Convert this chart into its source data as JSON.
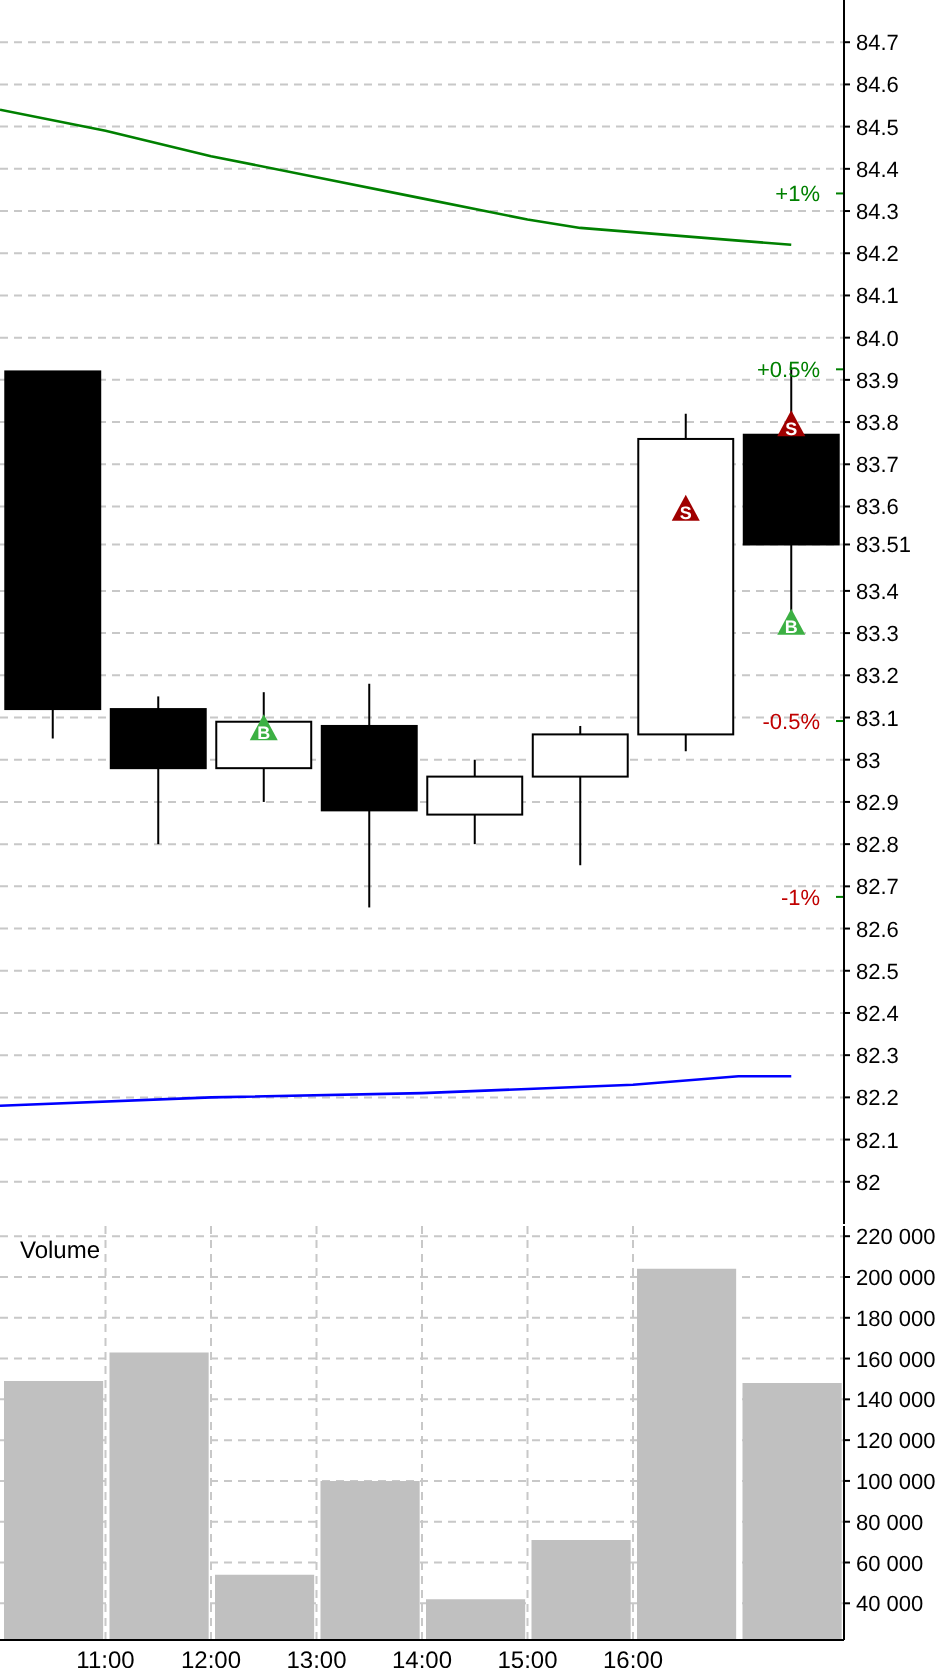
{
  "chart_data": [
    {
      "type": "candlestick",
      "x": [
        10.5,
        11.5,
        12.5,
        13.5,
        14.5,
        15.5,
        16.5,
        17.5
      ],
      "ohlc": [
        [
          83.92,
          83.92,
          83.05,
          83.12
        ],
        [
          83.12,
          83.15,
          82.8,
          82.98
        ],
        [
          82.98,
          83.16,
          82.9,
          83.09
        ],
        [
          83.08,
          83.18,
          82.65,
          82.88
        ],
        [
          82.87,
          83.0,
          82.8,
          82.96
        ],
        [
          82.96,
          83.08,
          82.75,
          83.06
        ],
        [
          83.06,
          83.82,
          83.02,
          83.76
        ],
        [
          83.77,
          83.93,
          83.35,
          83.51
        ]
      ],
      "color": "#000000",
      "series": [
        {
          "type": "line",
          "color": "#008000",
          "x": [
            10,
            11,
            12,
            13,
            14,
            15,
            15.5,
            16,
            17,
            17.5
          ],
          "values": [
            84.54,
            84.49,
            84.43,
            84.38,
            84.33,
            84.28,
            84.26,
            84.25,
            84.23,
            84.22
          ]
        },
        {
          "type": "line",
          "color": "#0000ff",
          "x": [
            10,
            12,
            14,
            15,
            16,
            17,
            17.5
          ],
          "values": [
            82.18,
            82.2,
            82.21,
            82.22,
            82.23,
            82.25,
            82.25
          ]
        },
        {
          "type": "scatter",
          "color": "#3cb043",
          "marker": "triangle",
          "x": [
            12.5,
            17.5
          ],
          "values": [
            83.07,
            83.32
          ]
        },
        {
          "type": "scatter",
          "color": "#a00000",
          "marker": "triangle",
          "x": [
            16.5,
            17.5
          ],
          "values": [
            83.59,
            83.79
          ]
        }
      ],
      "annotations": [
        {
          "text": "B",
          "x": 12.5,
          "y": 83.07
        },
        {
          "text": "B",
          "x": 17.5,
          "y": 83.32
        },
        {
          "text": "S",
          "x": 16.5,
          "y": 83.59
        },
        {
          "text": "S",
          "x": 17.5,
          "y": 83.79
        }
      ],
      "xlim": [
        10,
        18
      ],
      "xticks": [
        {
          "value": 11,
          "label": null
        },
        {
          "value": 12,
          "label": null
        },
        {
          "value": 13,
          "label": null
        },
        {
          "value": 14,
          "label": null
        },
        {
          "value": 15,
          "label": null
        },
        {
          "value": 16,
          "label": null
        }
      ],
      "ylim": [
        81.9,
        84.8
      ],
      "yticks": [
        82.0,
        82.1,
        82.2,
        82.3,
        82.4,
        82.5,
        82.6,
        82.7,
        82.8,
        82.9,
        83.0,
        83.1,
        83.2,
        83.3,
        83.4,
        {
          "value": 83.51,
          "label": "83.51"
        },
        83.6,
        83.7,
        83.8,
        83.9,
        {
          "value": 84.0,
          "label": "84.0"
        },
        84.1,
        84.2,
        84.3,
        84.4,
        84.5,
        84.6,
        84.7
      ],
      "y2lim": [
        -1.93,
        1.55
      ],
      "y2ticks": [
        {
          "value": 1,
          "label": "+1%"
        },
        {
          "value": 0.5,
          "label": "+0.5%"
        },
        {
          "value": -0.5,
          "label": "-0.5%"
        },
        {
          "value": -1,
          "label": "-1%"
        }
      ],
      "grid": true,
      "tick_labels": "y"
    },
    {
      "type": "bar",
      "title": "Volume",
      "x": [
        10.5,
        11.5,
        12.5,
        13.5,
        14.5,
        15.5,
        16.5,
        17.5
      ],
      "values": [
        149000,
        163000,
        54000,
        100000,
        42000,
        71000,
        204000,
        148000
      ],
      "color": "#c0c0c0",
      "xlim": [
        10,
        18
      ],
      "xticks": [
        {
          "value": 11,
          "label": "11:00"
        },
        {
          "value": 12,
          "label": "12:00"
        },
        {
          "value": 13,
          "label": "13:00"
        },
        {
          "value": 14,
          "label": "14:00"
        },
        {
          "value": 15,
          "label": "15:00"
        },
        {
          "value": 16,
          "label": "16:00"
        }
      ],
      "ylim": [
        22000,
        225000
      ],
      "yticks": [
        {
          "value": 40000,
          "label": "40 000"
        },
        {
          "value": 60000,
          "label": "60 000"
        },
        {
          "value": 80000,
          "label": "80 000"
        },
        {
          "value": 100000,
          "label": "100 000"
        },
        {
          "value": 120000,
          "label": "120 000"
        },
        {
          "value": 140000,
          "label": "140 000"
        },
        {
          "value": 160000,
          "label": "160 000"
        },
        {
          "value": 180000,
          "label": "180 000"
        },
        {
          "value": 200000,
          "label": "200 000"
        },
        {
          "value": 220000,
          "label": "220 000"
        }
      ],
      "grid": true
    }
  ]
}
